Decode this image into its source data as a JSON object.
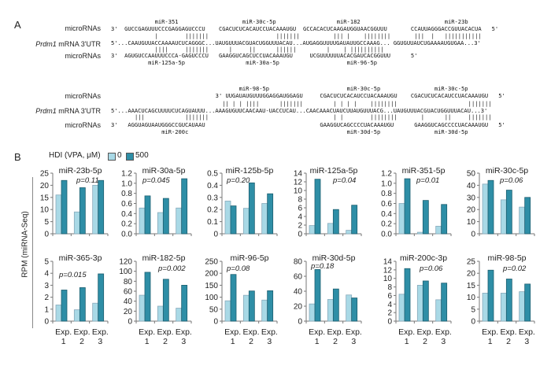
{
  "panel_a": {
    "letter": "A",
    "row_labels": {
      "micro": "microRNAs",
      "utr_gene": "Prdm1",
      "utr_rest": " mRNA 3'UTR"
    },
    "top": {
      "names_top": [
        "miR-351",
        "miR-30c-5p",
        "miR-182",
        "miR-23b"
      ],
      "mirna_top": [
        "3'",
        "GUCCGAGUUUCCCGAGGAGUCCCU",
        "CGACUCUCACAUCCUACAAAUGU",
        "GCCACACUCAAGAUGGUAACGGUUU",
        "CCAUUAGGGACCGUUACACUA",
        "5'"
      ],
      "bars_top": [
        "|",
        "|||||||",
        "|||||||",
        "||| |",
        "||||||||",
        "|||",
        "|",
        "|||||||||||"
      ],
      "utr": [
        "5'...CAAUGUUACCAAAAUCUCAGGGC...UAUGUUUACGUACUGGUUUACAU...AUGAGGUUUUGAUAUUGCCAAAG... GGUGUUAUCUGAAAAUGUGAA...3'"
      ],
      "bars_bottom": [
        "||||",
        "|||||||",
        "|",
        "||",
        "||||||",
        "|",
        "| ||||||||||"
      ],
      "mirna_bottom": [
        "3'",
        "AGUGUCCAAUUUCCCA-GAGUCCCU",
        "GAAGGUCAGCUCCUACAAAUGU",
        "UCGUUUUUUACACGAUCACGGUUU",
        "5'"
      ],
      "names_bottom": [
        "miR-125a-5p",
        "miR-30a-5p",
        "miR-96-5p"
      ]
    },
    "bottom": {
      "names_top": [
        "miR-98-5p",
        "miR-30c-5p",
        "miR-30c-5p"
      ],
      "mirna_top": [
        "3'",
        "UUGAUAUGUUUGGAGGAUGGAGU",
        "CGACUCUCACAUCCUACAAAUGU",
        "CGACUCUCACAUCCUACAAAUGU",
        "5'"
      ],
      "bars_top": [
        "|| | | ||||",
        "|||||||",
        "| | | |",
        "||||||||",
        "|||||||"
      ],
      "utr": [
        "5'...AAACUCAGCUUUUCUCAGUAUUU...AAAGUGUUCAACAAU-UACCUCAU...CAACAAACUAUCUUAUGUUUACG...UAUGUUUACGUACUGGUUUACAU...3'"
      ],
      "bars_bottom": [
        "|||",
        "|||||||",
        "| |",
        "||||||||",
        "|",
        "||",
        "|||||||"
      ],
      "mirna_bottom": [
        "3'",
        "AGGUAGUAAUGGGCCGUCAUAAU",
        "GAAGGUCAGCCCCUACAAAUGU",
        "GAAGGUCAGCCCCUACAAAUGU",
        "5'"
      ],
      "names_bottom": [
        "miR-200c",
        "miR-30d-5p",
        "miR-30d-5p"
      ]
    }
  },
  "panel_b": {
    "letter": "B",
    "legend": {
      "title": "HDI (VPA, μM)",
      "items": [
        "0",
        "500"
      ]
    },
    "ylabel": "RPM (miRNA-Seq)",
    "colors": {
      "0": "#a9d9e6",
      "500": "#2e8ea6"
    }
  },
  "chart_data": [
    {
      "type": "bar",
      "title": "miR-23b-5p",
      "p": "p=0.11",
      "categories": [
        "Exp. 1",
        "Exp. 2",
        "Exp. 3"
      ],
      "ylim": [
        0,
        25
      ],
      "yticks": [
        "0",
        "5",
        "10",
        "15",
        "20",
        "25"
      ],
      "series": [
        {
          "name": "0",
          "values": [
            16,
            9,
            20
          ]
        },
        {
          "name": "500",
          "values": [
            22,
            19,
            22
          ]
        }
      ]
    },
    {
      "type": "bar",
      "title": "miR-30a-5p",
      "p": "p=0.045",
      "categories": [
        "Exp. 1",
        "Exp. 2",
        "Exp. 3"
      ],
      "ylim": [
        0,
        1.2
      ],
      "yticks": [
        "0.0",
        "0.2",
        "0.4",
        "0.6",
        "0.8",
        "1.0",
        "1.2"
      ],
      "series": [
        {
          "name": "0",
          "values": [
            0.51,
            0.42,
            0.51
          ]
        },
        {
          "name": "500",
          "values": [
            0.75,
            0.7,
            1.09
          ]
        }
      ]
    },
    {
      "type": "bar",
      "title": "miR-125b-5p",
      "p": "p=0.20",
      "categories": [
        "Exp. 1",
        "Exp. 2",
        "Exp. 3"
      ],
      "ylim": [
        0,
        0.5
      ],
      "yticks": [
        "0",
        "0.1",
        "0.2",
        "0.3",
        "0.4",
        "0.5"
      ],
      "series": [
        {
          "name": "0",
          "values": [
            0.27,
            0.21,
            0.25
          ]
        },
        {
          "name": "500",
          "values": [
            0.23,
            0.42,
            0.33
          ]
        }
      ]
    },
    {
      "type": "bar",
      "title": "miR-125a-5p",
      "p": "p=0.04",
      "categories": [
        "Exp. 1",
        "Exp. 2",
        "Exp. 3"
      ],
      "ylim": [
        0,
        14
      ],
      "yticks": [
        "0",
        "2",
        "4",
        "6",
        "8",
        "10",
        "12",
        "14"
      ],
      "series": [
        {
          "name": "0",
          "values": [
            1.9,
            2.4,
            0.8
          ]
        },
        {
          "name": "500",
          "values": [
            12.6,
            5.6,
            6.6
          ]
        }
      ]
    },
    {
      "type": "bar",
      "title": "miR-351-5p",
      "p": "p=0.01",
      "categories": [
        "Exp. 1",
        "Exp. 2",
        "Exp. 3"
      ],
      "ylim": [
        0,
        1.2
      ],
      "yticks": [
        "0.0",
        "0.2",
        "0.4",
        "0.6",
        "0.8",
        "1.0",
        "1.2"
      ],
      "series": [
        {
          "name": "0",
          "values": [
            0.6,
            0.03,
            0.15
          ]
        },
        {
          "name": "500",
          "values": [
            1.09,
            0.66,
            0.58
          ]
        }
      ]
    },
    {
      "type": "bar",
      "title": "miR-30c-5p",
      "p": "p=0.06",
      "categories": [
        "Exp. 1",
        "Exp. 2",
        "Exp. 3"
      ],
      "ylim": [
        0,
        50
      ],
      "yticks": [
        "0",
        "10",
        "20",
        "30",
        "40",
        "50"
      ],
      "series": [
        {
          "name": "0",
          "values": [
            41,
            28,
            22
          ]
        },
        {
          "name": "500",
          "values": [
            44,
            36,
            30
          ]
        }
      ]
    },
    {
      "type": "bar",
      "title": "miR-365-3p",
      "p": "p=0.015",
      "categories": [
        "Exp. 1",
        "Exp. 2",
        "Exp. 3"
      ],
      "ylim": [
        0,
        5
      ],
      "yticks": [
        "0",
        "1",
        "2",
        "3",
        "4",
        "5"
      ],
      "series": [
        {
          "name": "0",
          "values": [
            1.35,
            0.95,
            1.5
          ]
        },
        {
          "name": "500",
          "values": [
            2.6,
            2.8,
            3.95
          ]
        }
      ]
    },
    {
      "type": "bar",
      "title": "miR-182-5p",
      "p": "p=0.002",
      "categories": [
        "Exp. 1",
        "Exp. 2",
        "Exp. 3"
      ],
      "ylim": [
        0,
        120
      ],
      "yticks": [
        "0",
        "20",
        "40",
        "60",
        "80",
        "100",
        "120"
      ],
      "series": [
        {
          "name": "0",
          "values": [
            52,
            30,
            26
          ]
        },
        {
          "name": "500",
          "values": [
            98,
            84,
            72
          ]
        }
      ]
    },
    {
      "type": "bar",
      "title": "miR-96-5p",
      "p": "p=0.08",
      "categories": [
        "Exp. 1",
        "Exp. 2",
        "Exp. 3"
      ],
      "ylim": [
        0,
        250
      ],
      "yticks": [
        "0",
        "50",
        "100",
        "150",
        "200",
        "250"
      ],
      "series": [
        {
          "name": "0",
          "values": [
            85,
            108,
            88
          ]
        },
        {
          "name": "500",
          "values": [
            195,
            126,
            127
          ]
        }
      ]
    },
    {
      "type": "bar",
      "title": "miR-30d-5p",
      "p": "p=0.18",
      "categories": [
        "Exp. 1",
        "Exp. 2",
        "Exp. 3"
      ],
      "ylim": [
        0,
        80
      ],
      "yticks": [
        "0",
        "20",
        "40",
        "60",
        "80"
      ],
      "series": [
        {
          "name": "0",
          "values": [
            23,
            29,
            35
          ]
        },
        {
          "name": "500",
          "values": [
            69,
            43,
            31
          ]
        }
      ]
    },
    {
      "type": "bar",
      "title": "miR-200c-3p",
      "p": "p=0.06",
      "categories": [
        "Exp. 1",
        "Exp. 2",
        "Exp. 3"
      ],
      "ylim": [
        0,
        14
      ],
      "yticks": [
        "0",
        "2",
        "4",
        "6",
        "8",
        "10",
        "12",
        "14"
      ],
      "series": [
        {
          "name": "0",
          "values": [
            6.3,
            8.4,
            5.0
          ]
        },
        {
          "name": "500",
          "values": [
            12.3,
            9.4,
            8.9
          ]
        }
      ]
    },
    {
      "type": "bar",
      "title": "miR-98-5p",
      "p": "p=0.02",
      "categories": [
        "Exp. 1",
        "Exp. 2",
        "Exp. 3"
      ],
      "ylim": [
        0,
        25
      ],
      "yticks": [
        "0",
        "5",
        "10",
        "15",
        "20",
        "25"
      ],
      "series": [
        {
          "name": "0",
          "values": [
            11.7,
            11.7,
            12.3
          ]
        },
        {
          "name": "500",
          "values": [
            21.3,
            17.6,
            15.5
          ]
        }
      ]
    }
  ]
}
